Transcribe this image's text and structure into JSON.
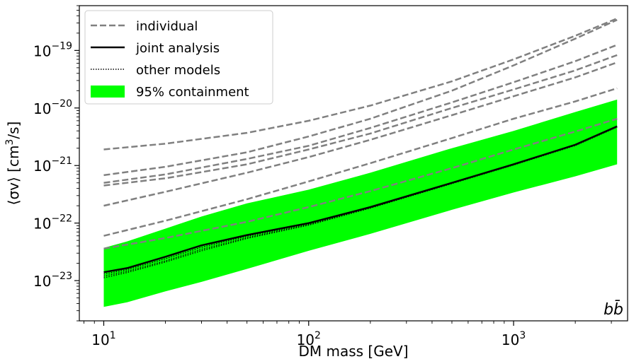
{
  "chart_data": {
    "type": "line",
    "xlabel": "DM mass [GeV]",
    "ylabel_parts": {
      "open": "⟨σv⟩ [cm",
      "sup": "3",
      "close": "/s]"
    },
    "x_scale": "log",
    "y_scale": "log",
    "xlim": [
      7.6,
      3600
    ],
    "ylim": [
      2e-24,
      6e-19
    ],
    "x_ticks": [
      {
        "value": 10,
        "base": "10",
        "exp": "1"
      },
      {
        "value": 100,
        "base": "10",
        "exp": "2"
      },
      {
        "value": 1000,
        "base": "10",
        "exp": "3"
      }
    ],
    "y_ticks": [
      {
        "value": 1e-23,
        "base": "10",
        "exp": "−23"
      },
      {
        "value": 1e-22,
        "base": "10",
        "exp": "−22"
      },
      {
        "value": 1e-21,
        "base": "10",
        "exp": "−21"
      },
      {
        "value": 1e-20,
        "base": "10",
        "exp": "−20"
      },
      {
        "value": 1e-19,
        "base": "10",
        "exp": "−19"
      }
    ],
    "annotation": "bb̄",
    "legend": {
      "placement": "upper-left",
      "entries": [
        {
          "label": "individual",
          "style": "dashed",
          "color": "#808080"
        },
        {
          "label": "joint analysis",
          "style": "solid",
          "color": "#000000"
        },
        {
          "label": "other models",
          "style": "dotted",
          "color": "#000000"
        },
        {
          "label": "95% containment",
          "style": "fill",
          "color": "#00ff00"
        }
      ]
    },
    "band": {
      "name": "95% containment",
      "color": "#00ff00",
      "x": [
        10,
        13,
        20,
        30,
        50,
        100,
        200,
        500,
        1000,
        2000,
        3200
      ],
      "upper": [
        3.7e-23,
        4.8e-23,
        8e-23,
        1.3e-22,
        2.2e-22,
        3.8e-22,
        7.5e-22,
        2e-21,
        4e-21,
        8.5e-21,
        1.4e-20
      ],
      "lower": [
        3.5e-24,
        4.2e-24,
        6.5e-24,
        9.5e-24,
        1.6e-23,
        3.3e-23,
        6.5e-23,
        1.7e-22,
        3.4e-22,
        6.5e-22,
        1.05e-21
      ]
    },
    "series": [
      {
        "name": "joint analysis",
        "style": "solid",
        "color": "#000000",
        "x": [
          10,
          13,
          20,
          30,
          50,
          100,
          200,
          500,
          1000,
          2000,
          3200
        ],
        "y": [
          1.4e-23,
          1.65e-23,
          2.6e-23,
          4.1e-23,
          6.2e-23,
          1e-22,
          1.9e-22,
          5e-22,
          1.05e-21,
          2.3e-21,
          4.8e-21
        ]
      },
      {
        "name": "other models",
        "style": "dotted",
        "color": "#000000",
        "x": [
          10,
          13,
          20,
          30,
          50,
          100,
          200,
          500,
          1000,
          2000,
          3200
        ],
        "y": [
          1.3e-23,
          1.55e-23,
          2.4e-23,
          3.8e-23,
          5.9e-23,
          9.7e-23,
          1.87e-22,
          4.95e-22,
          1.04e-21,
          2.28e-21,
          4.75e-21
        ]
      },
      {
        "name": "other models",
        "style": "dotted",
        "color": "#000000",
        "x": [
          10,
          13,
          20,
          30,
          50,
          100,
          200,
          500,
          1000,
          2000,
          3200
        ],
        "y": [
          1.2e-23,
          1.45e-23,
          2.2e-23,
          3.5e-23,
          5.6e-23,
          9.4e-23,
          1.84e-22,
          4.9e-22,
          1.03e-21,
          2.25e-21,
          4.7e-21
        ]
      },
      {
        "name": "other models",
        "style": "dotted",
        "color": "#000000",
        "x": [
          10,
          13,
          20,
          30,
          50,
          100,
          200,
          500,
          1000,
          2000,
          3200
        ],
        "y": [
          1.12e-23,
          1.38e-23,
          2.1e-23,
          3.3e-23,
          5.4e-23,
          9.2e-23,
          1.82e-22,
          4.85e-22,
          1.02e-21,
          2.22e-21,
          4.65e-21
        ]
      },
      {
        "name": "individual",
        "style": "dashed",
        "color": "#808080",
        "x": [
          10,
          20,
          50,
          100,
          200,
          500,
          1000,
          2000,
          3200
        ],
        "y": [
          1.9e-21,
          2.4e-21,
          3.7e-21,
          6e-21,
          1.1e-20,
          2.9e-20,
          7e-20,
          1.8e-19,
          3.6e-19
        ]
      },
      {
        "name": "individual",
        "style": "dashed",
        "color": "#808080",
        "x": [
          10,
          20,
          50,
          100,
          200,
          500,
          1000,
          2000,
          3200
        ],
        "y": [
          6.8e-22,
          9.5e-22,
          1.7e-21,
          3.2e-21,
          6.5e-21,
          2e-20,
          5.5e-20,
          1.6e-19,
          3.4e-19
        ]
      },
      {
        "name": "individual",
        "style": "dashed",
        "color": "#808080",
        "x": [
          10,
          20,
          50,
          100,
          200,
          500,
          1000,
          2000,
          3200
        ],
        "y": [
          5e-22,
          7e-22,
          1.3e-21,
          2.2e-21,
          4.5e-21,
          1.25e-20,
          2.8e-20,
          6.5e-20,
          1.25e-19
        ]
      },
      {
        "name": "individual",
        "style": "dashed",
        "color": "#808080",
        "x": [
          10,
          20,
          50,
          100,
          200,
          500,
          1000,
          2000,
          3200
        ],
        "y": [
          4.5e-22,
          6e-22,
          1.05e-21,
          1.9e-21,
          3.6e-21,
          1e-20,
          2.1e-20,
          4.5e-20,
          8.3e-20
        ]
      },
      {
        "name": "individual",
        "style": "dashed",
        "color": "#808080",
        "x": [
          10,
          20,
          50,
          100,
          200,
          500,
          1000,
          2000,
          3200
        ],
        "y": [
          2e-22,
          3.5e-22,
          7.5e-22,
          1.4e-21,
          2.8e-21,
          7.5e-21,
          1.6e-20,
          3.4e-20,
          6.2e-20
        ]
      },
      {
        "name": "individual",
        "style": "dashed",
        "color": "#808080",
        "x": [
          10,
          20,
          50,
          100,
          200,
          500,
          1000,
          2000,
          3200
        ],
        "y": [
          6e-23,
          1.1e-22,
          2.6e-22,
          5.3e-22,
          1.1e-21,
          3e-21,
          6.5e-21,
          1.3e-20,
          2.2e-20
        ]
      },
      {
        "name": "individual",
        "style": "dashed",
        "color": "#808080",
        "x": [
          10,
          20,
          50,
          100,
          200,
          500,
          1000,
          2000,
          3200
        ],
        "y": [
          3.6e-23,
          5.5e-23,
          1.05e-22,
          1.9e-22,
          3.6e-22,
          9e-22,
          1.9e-21,
          3.9e-21,
          6.5e-21
        ]
      }
    ]
  }
}
